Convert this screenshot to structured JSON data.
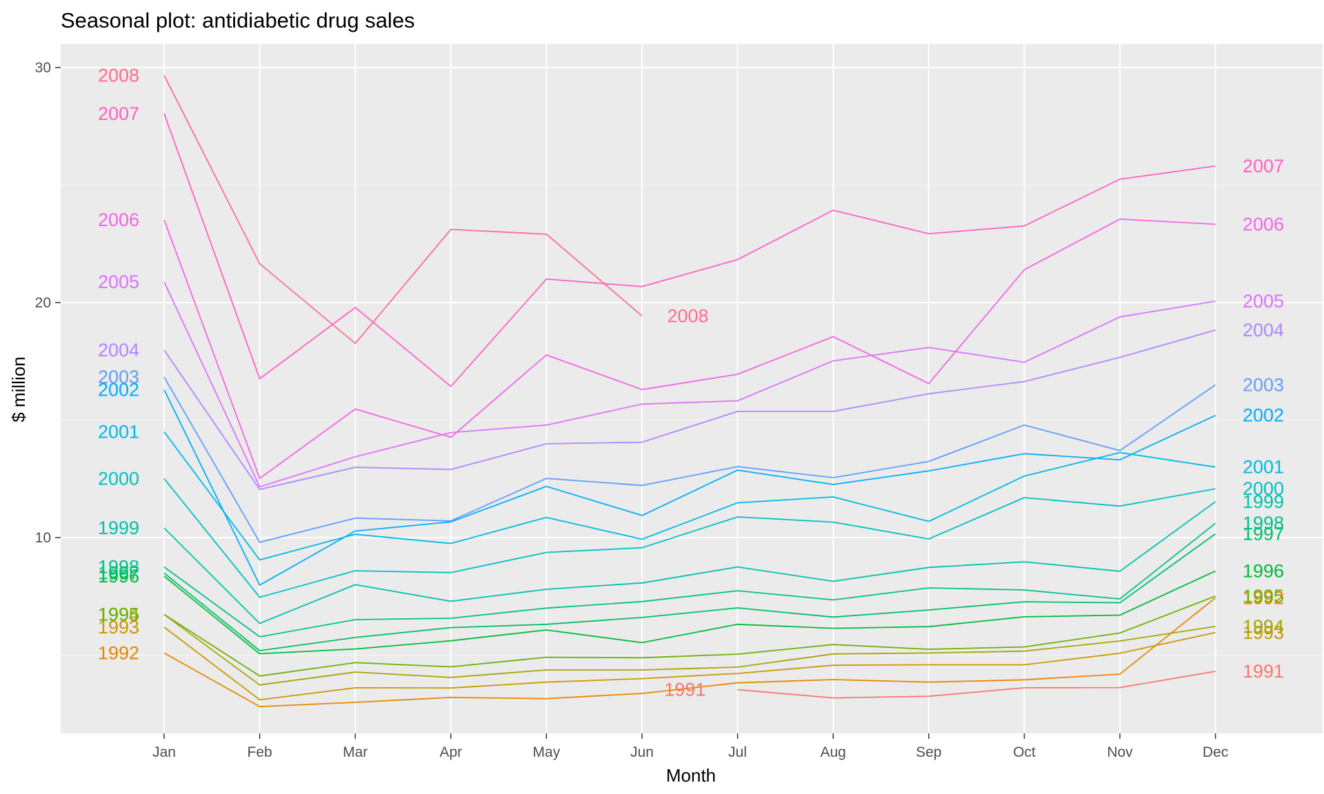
{
  "chart_data": {
    "type": "line",
    "title": "Seasonal plot: antidiabetic drug sales",
    "xlabel": "Month",
    "ylabel": "$ million",
    "categories": [
      "Jan",
      "Feb",
      "Mar",
      "Apr",
      "May",
      "Jun",
      "Jul",
      "Aug",
      "Sep",
      "Oct",
      "Nov",
      "Dec"
    ],
    "ylim": [
      1.5,
      31.5
    ],
    "yticks": [
      10,
      20,
      30
    ],
    "grid": true,
    "legend": "none",
    "series": [
      {
        "name": "1991",
        "color": "#f8766d",
        "values": [
          null,
          null,
          null,
          null,
          null,
          null,
          3.53,
          3.18,
          3.25,
          3.61,
          3.62,
          4.31
        ]
      },
      {
        "name": "1992",
        "color": "#e58700",
        "values": [
          5.09,
          2.81,
          2.99,
          3.2,
          3.15,
          3.37,
          3.82,
          3.96,
          3.85,
          3.95,
          4.19,
          7.44
        ]
      },
      {
        "name": "1993",
        "color": "#c99800",
        "values": [
          6.19,
          3.1,
          3.61,
          3.6,
          3.85,
          4.0,
          4.22,
          4.57,
          4.59,
          4.59,
          5.08,
          5.96
        ]
      },
      {
        "name": "1994",
        "color": "#a3a500",
        "values": [
          6.73,
          3.73,
          4.28,
          4.05,
          4.37,
          4.37,
          4.49,
          5.05,
          5.09,
          5.17,
          5.6,
          6.22
        ]
      },
      {
        "name": "1995",
        "color": "#6bb100",
        "values": [
          6.73,
          4.11,
          4.68,
          4.5,
          4.91,
          4.89,
          5.04,
          5.45,
          5.25,
          5.35,
          5.94,
          7.51
        ]
      },
      {
        "name": "1996",
        "color": "#00ba38",
        "values": [
          8.36,
          5.06,
          5.26,
          5.61,
          6.07,
          5.53,
          6.31,
          6.14,
          6.21,
          6.63,
          6.7,
          8.58
        ]
      },
      {
        "name": "1997",
        "color": "#00be67",
        "values": [
          8.49,
          5.19,
          5.75,
          6.17,
          6.31,
          6.6,
          7.01,
          6.62,
          6.92,
          7.27,
          7.23,
          10.16
        ]
      },
      {
        "name": "1998",
        "color": "#00c08b",
        "values": [
          8.75,
          5.78,
          6.51,
          6.57,
          7.0,
          7.28,
          7.74,
          7.35,
          7.86,
          7.77,
          7.39,
          10.61
        ]
      },
      {
        "name": "1999",
        "color": "#00c1a9",
        "values": [
          10.41,
          6.35,
          8.0,
          7.29,
          7.8,
          8.07,
          8.75,
          8.14,
          8.73,
          8.97,
          8.57,
          11.53
        ]
      },
      {
        "name": "2000",
        "color": "#00bfc4",
        "values": [
          12.51,
          7.46,
          8.59,
          8.51,
          9.37,
          9.57,
          10.88,
          10.66,
          9.94,
          11.7,
          11.34,
          12.08
        ]
      },
      {
        "name": "2001",
        "color": "#00b9e3",
        "values": [
          14.5,
          9.05,
          10.14,
          9.75,
          10.86,
          9.93,
          11.48,
          11.73,
          10.69,
          12.62,
          13.62,
          13.0
        ]
      },
      {
        "name": "2002",
        "color": "#00adfa",
        "values": [
          16.29,
          7.98,
          10.28,
          10.67,
          12.18,
          10.94,
          12.87,
          12.26,
          12.84,
          13.57,
          13.31,
          15.2
        ]
      },
      {
        "name": "2003",
        "color": "#619cff",
        "values": [
          16.83,
          9.8,
          10.83,
          10.71,
          12.52,
          12.22,
          13.02,
          12.55,
          13.24,
          14.79,
          13.7,
          16.5
        ]
      },
      {
        "name": "2004",
        "color": "#ae87ff",
        "values": [
          17.98,
          12.05,
          12.99,
          12.9,
          13.99,
          14.06,
          15.37,
          15.37,
          16.12,
          16.64,
          17.67,
          18.83
        ]
      },
      {
        "name": "2005",
        "color": "#db72fb",
        "values": [
          20.88,
          12.16,
          13.44,
          14.47,
          14.79,
          15.68,
          15.82,
          17.52,
          18.09,
          17.46,
          19.39,
          20.06
        ]
      },
      {
        "name": "2006",
        "color": "#f564e3",
        "values": [
          23.52,
          12.52,
          15.47,
          14.27,
          17.77,
          16.3,
          16.95,
          18.55,
          16.55,
          21.4,
          23.55,
          23.33
        ]
      },
      {
        "name": "2007",
        "color": "#ff61c3",
        "values": [
          28.04,
          16.76,
          19.79,
          16.43,
          21.0,
          20.68,
          21.83,
          23.93,
          22.93,
          23.26,
          25.25,
          25.81
        ]
      },
      {
        "name": "2008",
        "color": "#ff6c91",
        "values": [
          29.67,
          21.65,
          18.26,
          23.11,
          22.91,
          19.43,
          null,
          null,
          null,
          null,
          null,
          null
        ]
      }
    ]
  }
}
